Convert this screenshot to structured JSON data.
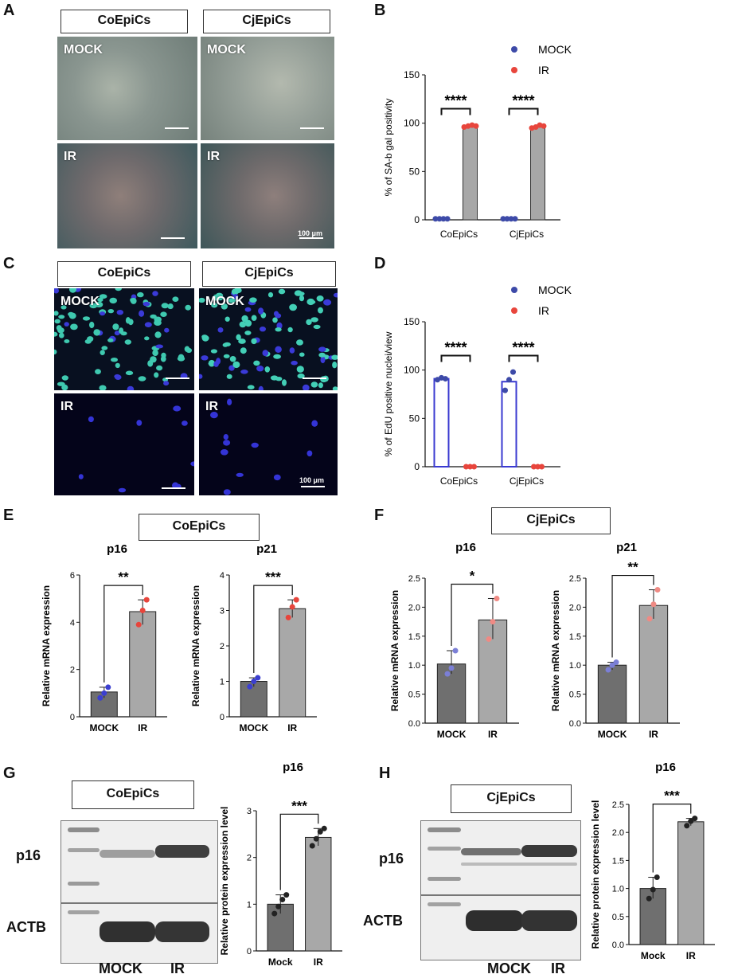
{
  "panels": {
    "A": {
      "letter": "A",
      "cols": [
        "CoEpiCs",
        "CjEpiCs"
      ],
      "rows": [
        "MOCK",
        "IR"
      ],
      "scale": "100 μm"
    },
    "B": {
      "letter": "B",
      "chart_data": {
        "type": "bar",
        "categories": [
          "CoEpiCs",
          "CjEpiCs"
        ],
        "series": [
          {
            "name": "MOCK",
            "values": [
              1,
              1
            ],
            "points": [
              [
                1,
                1,
                1,
                1
              ],
              [
                1,
                1,
                1,
                1
              ]
            ]
          },
          {
            "name": "IR",
            "values": [
              97,
              96
            ],
            "points": [
              [
                96,
                97,
                98,
                97
              ],
              [
                95,
                96,
                98,
                97
              ]
            ]
          }
        ],
        "ylabel": "% of SA-b gal positivity",
        "ylim": [
          0,
          150
        ],
        "yticks": [
          "0",
          "50",
          "100",
          "150"
        ],
        "significance": [
          "****",
          "****"
        ],
        "colors": {
          "MOCK": "#3d4aa8",
          "IR": "#e8453c",
          "bar": "#a7a7a7"
        }
      }
    },
    "C": {
      "letter": "C",
      "cols": [
        "CoEpiCs",
        "CjEpiCs"
      ],
      "rows": [
        "MOCK",
        "IR"
      ],
      "scale": "100 μm"
    },
    "D": {
      "letter": "D",
      "chart_data": {
        "type": "bar",
        "categories": [
          "CoEpiCs",
          "CjEpiCs"
        ],
        "series": [
          {
            "name": "MOCK",
            "values": [
              91,
              88
            ],
            "points": [
              [
                90,
                92,
                91
              ],
              [
                79,
                90,
                98
              ]
            ]
          },
          {
            "name": "IR",
            "values": [
              0,
              0
            ],
            "points": [
              [
                0,
                0,
                0
              ],
              [
                0,
                0,
                0
              ]
            ]
          }
        ],
        "ylabel": "% of EdU positive nuclei/view",
        "ylim": [
          0,
          150
        ],
        "yticks": [
          "0",
          "50",
          "100",
          "150"
        ],
        "significance": [
          "****",
          "****"
        ],
        "colors": {
          "MOCK": "#3d4aa8",
          "IR": "#e8453c",
          "bar": "#3a3ad0"
        }
      }
    },
    "E": {
      "letter": "E",
      "cell_line": "CoEpiCs",
      "charts": [
        {
          "title": "p16",
          "categories": [
            "MOCK",
            "IR"
          ],
          "values": [
            1.05,
            4.45
          ],
          "points": [
            [
              0.8,
              1.0,
              1.25
            ],
            [
              3.9,
              4.5,
              4.95
            ]
          ],
          "ylim": [
            0,
            6
          ],
          "yticks": [
            "0",
            "2",
            "4",
            "6"
          ],
          "ylabel": "Relative mRNA expression",
          "sig": "**"
        },
        {
          "title": "p21",
          "categories": [
            "MOCK",
            "IR"
          ],
          "values": [
            1.0,
            3.05
          ],
          "points": [
            [
              0.85,
              1.0,
              1.1
            ],
            [
              2.8,
              3.1,
              3.3
            ]
          ],
          "ylim": [
            0,
            4
          ],
          "yticks": [
            "0",
            "1",
            "2",
            "3",
            "4"
          ],
          "ylabel": "Relative mRNA expression",
          "sig": "***"
        }
      ]
    },
    "F": {
      "letter": "F",
      "cell_line": "CjEpiCs",
      "charts": [
        {
          "title": "p16",
          "categories": [
            "MOCK",
            "IR"
          ],
          "values": [
            1.02,
            1.78
          ],
          "points": [
            [
              0.85,
              0.95,
              1.25
            ],
            [
              1.45,
              1.75,
              2.15
            ]
          ],
          "ylim": [
            0,
            2.5
          ],
          "yticks": [
            "0.0",
            "0.5",
            "1.0",
            "1.5",
            "2.0",
            "2.5"
          ],
          "ylabel": "Relative mRNA expression",
          "sig": "*"
        },
        {
          "title": "p21",
          "categories": [
            "MOCK",
            "IR"
          ],
          "values": [
            1.0,
            2.03
          ],
          "points": [
            [
              0.92,
              1.0,
              1.05
            ],
            [
              1.8,
              2.05,
              2.3
            ]
          ],
          "ylim": [
            0,
            2.5
          ],
          "yticks": [
            "0.0",
            "0.5",
            "1.0",
            "1.5",
            "2.0",
            "2.5"
          ],
          "ylabel": "Relative mRNA expression",
          "sig": "**"
        }
      ]
    },
    "G": {
      "letter": "G",
      "cell_line": "CoEpiCs",
      "blot_rows": [
        "p16",
        "ACTB"
      ],
      "lanes": [
        "MOCK",
        "IR"
      ],
      "chart": {
        "title": "p16",
        "categories": [
          "Mock",
          "IR"
        ],
        "values": [
          1.0,
          2.43
        ],
        "points": [
          [
            0.8,
            0.95,
            1.1,
            1.2
          ],
          [
            2.25,
            2.4,
            2.55,
            2.62
          ]
        ],
        "ylim": [
          0,
          3
        ],
        "yticks": [
          "0",
          "1",
          "2",
          "3"
        ],
        "ylabel": "Relative protein expression level",
        "sig": "***"
      }
    },
    "H": {
      "letter": "H",
      "cell_line": "CjEpiCs",
      "blot_rows": [
        "p16",
        "ACTB"
      ],
      "lanes": [
        "MOCK",
        "IR"
      ],
      "chart": {
        "title": "p16",
        "categories": [
          "Mock",
          "IR"
        ],
        "values": [
          1.0,
          2.19
        ],
        "points": [
          [
            0.82,
            0.98,
            1.2
          ],
          [
            2.12,
            2.2,
            2.25
          ]
        ],
        "ylim": [
          0,
          2.5
        ],
        "yticks": [
          "0.0",
          "0.5",
          "1.0",
          "1.5",
          "2.0",
          "2.5"
        ],
        "ylabel": "Relative protein expression level",
        "sig": "***"
      }
    }
  },
  "legend": {
    "mock": "MOCK",
    "ir": "IR"
  }
}
